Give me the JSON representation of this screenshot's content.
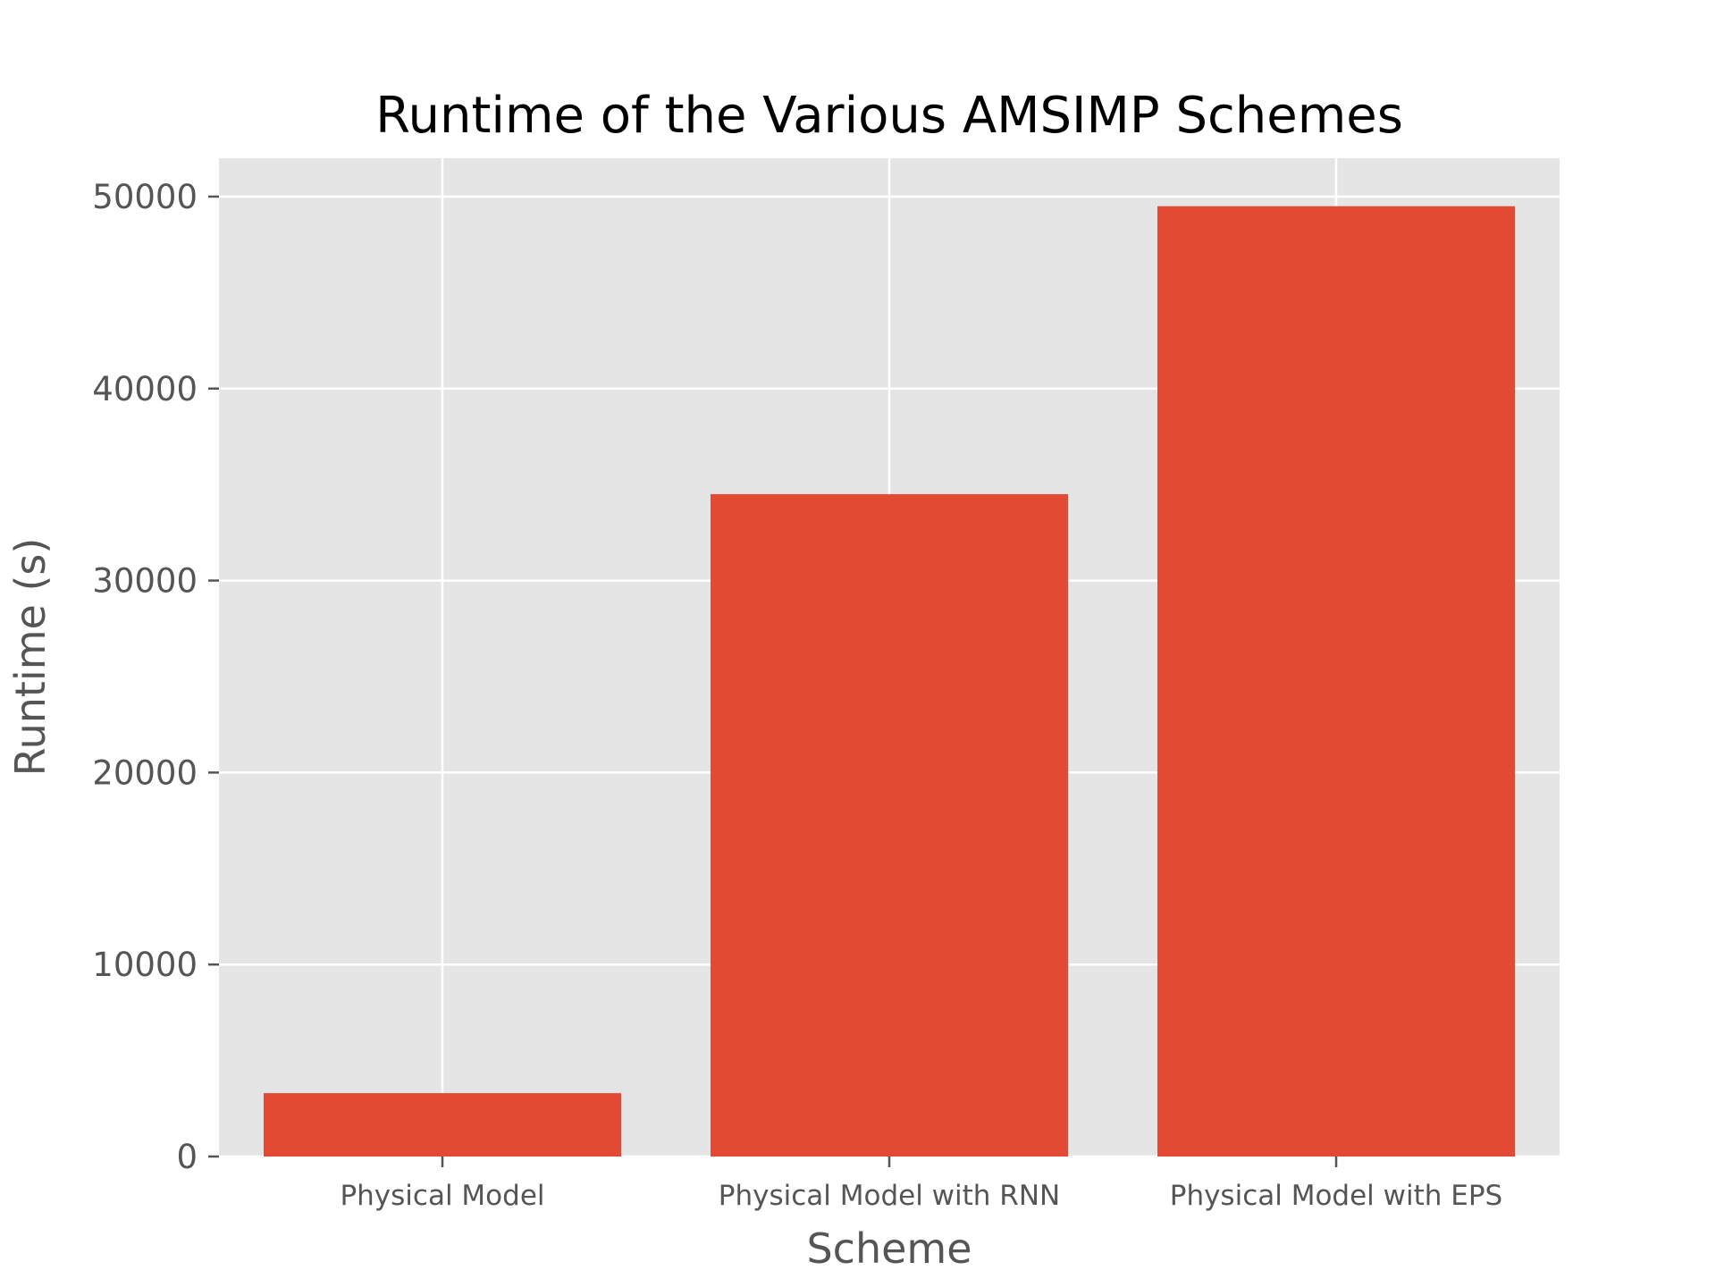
{
  "chart_data": {
    "type": "bar",
    "title": "Runtime of the Various AMSIMP Schemes",
    "xlabel": "Scheme",
    "ylabel": "Runtime (s)",
    "categories": [
      "Physical Model",
      "Physical Model with RNN",
      "Physical Model with EPS"
    ],
    "values": [
      3300,
      34500,
      49500
    ],
    "ylim": [
      0,
      52000
    ],
    "yticks": [
      0,
      10000,
      20000,
      30000,
      40000,
      50000
    ],
    "ytick_labels": [
      "0",
      "10000",
      "20000",
      "30000",
      "40000",
      "50000"
    ],
    "grid": true,
    "bar_color": "#E24A33",
    "plot_background": "#E5E5E5",
    "grid_color": "#FFFFFF"
  }
}
